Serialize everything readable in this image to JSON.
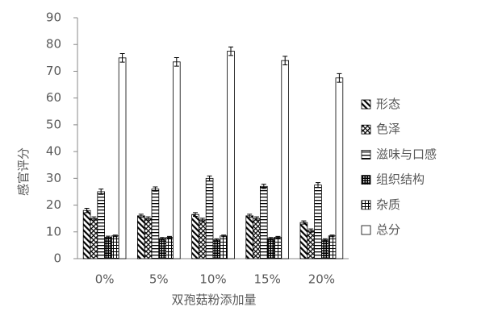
{
  "chart_data": {
    "type": "bar",
    "x_label": "双孢菇粉添加量",
    "y_label": "感官评分",
    "categories": [
      "0%",
      "5%",
      "10%",
      "15%",
      "20%"
    ],
    "series": [
      {
        "name": "形态",
        "color": "#000000",
        "values": [
          18,
          16,
          16.5,
          16,
          13.5
        ],
        "errors": [
          0.8,
          0.6,
          0.7,
          0.6,
          0.6
        ]
      },
      {
        "name": "色泽",
        "color": "#000000",
        "values": [
          15,
          15,
          14.5,
          15,
          10.5
        ],
        "errors": [
          0.6,
          0.6,
          0.6,
          0.6,
          0.6
        ]
      },
      {
        "name": "滋味与口感",
        "color": "#000000",
        "values": [
          25,
          26,
          30,
          27,
          27.5
        ],
        "errors": [
          1,
          0.8,
          0.9,
          0.8,
          0.9
        ]
      },
      {
        "name": "组织结构",
        "color": "#000000",
        "values": [
          8,
          7.5,
          7,
          7.5,
          7
        ],
        "errors": [
          0.4,
          0.4,
          0.4,
          0.4,
          0.4
        ]
      },
      {
        "name": "杂质",
        "color": "#000000",
        "values": [
          8.5,
          8,
          8.5,
          8,
          8.5
        ],
        "errors": [
          0.3,
          0.3,
          0.3,
          0.3,
          0.3
        ]
      },
      {
        "name": "总分",
        "color": "#000000",
        "values": [
          75,
          73.5,
          77.5,
          74,
          67.5
        ],
        "errors": [
          1.6,
          1.6,
          1.6,
          1.6,
          1.6
        ]
      }
    ],
    "ylim": [
      0,
      90
    ],
    "yticks": [
      0,
      10,
      20,
      30,
      40,
      50,
      60,
      70,
      80,
      90
    ],
    "grid": false,
    "legend": "right"
  }
}
